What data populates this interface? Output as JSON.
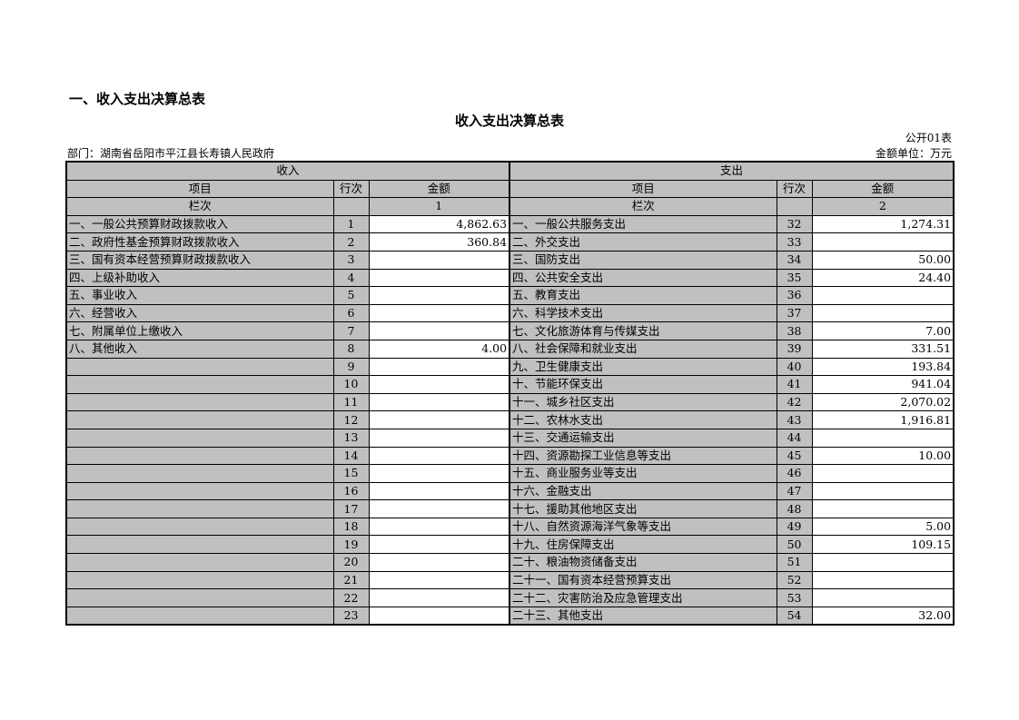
{
  "heading": "一、收入支出决算总表",
  "title": "收入支出决算总表",
  "form_code": "公开01表",
  "department": "部门：湖南省岳阳市平江县长寿镇人民政府",
  "unit": "金额单位：万元",
  "headers": {
    "income": "收入",
    "expense": "支出",
    "item": "项目",
    "row_no": "行次",
    "amount": "金额",
    "column_order": "栏次",
    "income_col": "1",
    "expense_col": "2"
  },
  "rows": [
    {
      "in_item": "一、一般公共预算财政拨款收入",
      "in_no": "1",
      "in_amt": "4,862.63",
      "ex_item": "一、一般公共服务支出",
      "ex_no": "32",
      "ex_amt": "1,274.31"
    },
    {
      "in_item": "二、政府性基金预算财政拨款收入",
      "in_no": "2",
      "in_amt": "360.84",
      "ex_item": "二、外交支出",
      "ex_no": "33",
      "ex_amt": ""
    },
    {
      "in_item": "三、国有资本经营预算财政拨款收入",
      "in_no": "3",
      "in_amt": "",
      "ex_item": "三、国防支出",
      "ex_no": "34",
      "ex_amt": "50.00"
    },
    {
      "in_item": "四、上级补助收入",
      "in_no": "4",
      "in_amt": "",
      "ex_item": "四、公共安全支出",
      "ex_no": "35",
      "ex_amt": "24.40"
    },
    {
      "in_item": "五、事业收入",
      "in_no": "5",
      "in_amt": "",
      "ex_item": "五、教育支出",
      "ex_no": "36",
      "ex_amt": ""
    },
    {
      "in_item": "六、经营收入",
      "in_no": "6",
      "in_amt": "",
      "ex_item": "六、科学技术支出",
      "ex_no": "37",
      "ex_amt": ""
    },
    {
      "in_item": "七、附属单位上缴收入",
      "in_no": "7",
      "in_amt": "",
      "ex_item": "七、文化旅游体育与传媒支出",
      "ex_no": "38",
      "ex_amt": "7.00"
    },
    {
      "in_item": "八、其他收入",
      "in_no": "8",
      "in_amt": "4.00",
      "ex_item": "八、社会保障和就业支出",
      "ex_no": "39",
      "ex_amt": "331.51"
    },
    {
      "in_item": "",
      "in_no": "9",
      "in_amt": "",
      "ex_item": "九、卫生健康支出",
      "ex_no": "40",
      "ex_amt": "193.84"
    },
    {
      "in_item": "",
      "in_no": "10",
      "in_amt": "",
      "ex_item": "十、节能环保支出",
      "ex_no": "41",
      "ex_amt": "941.04"
    },
    {
      "in_item": "",
      "in_no": "11",
      "in_amt": "",
      "ex_item": "十一、城乡社区支出",
      "ex_no": "42",
      "ex_amt": "2,070.02"
    },
    {
      "in_item": "",
      "in_no": "12",
      "in_amt": "",
      "ex_item": "十二、农林水支出",
      "ex_no": "43",
      "ex_amt": "1,916.81"
    },
    {
      "in_item": "",
      "in_no": "13",
      "in_amt": "",
      "ex_item": "十三、交通运输支出",
      "ex_no": "44",
      "ex_amt": ""
    },
    {
      "in_item": "",
      "in_no": "14",
      "in_amt": "",
      "ex_item": "十四、资源勘探工业信息等支出",
      "ex_no": "45",
      "ex_amt": "10.00"
    },
    {
      "in_item": "",
      "in_no": "15",
      "in_amt": "",
      "ex_item": "十五、商业服务业等支出",
      "ex_no": "46",
      "ex_amt": ""
    },
    {
      "in_item": "",
      "in_no": "16",
      "in_amt": "",
      "ex_item": "十六、金融支出",
      "ex_no": "47",
      "ex_amt": ""
    },
    {
      "in_item": "",
      "in_no": "17",
      "in_amt": "",
      "ex_item": "十七、援助其他地区支出",
      "ex_no": "48",
      "ex_amt": ""
    },
    {
      "in_item": "",
      "in_no": "18",
      "in_amt": "",
      "ex_item": "十八、自然资源海洋气象等支出",
      "ex_no": "49",
      "ex_amt": "5.00"
    },
    {
      "in_item": "",
      "in_no": "19",
      "in_amt": "",
      "ex_item": "十九、住房保障支出",
      "ex_no": "50",
      "ex_amt": "109.15"
    },
    {
      "in_item": "",
      "in_no": "20",
      "in_amt": "",
      "ex_item": "二十、粮油物资储备支出",
      "ex_no": "51",
      "ex_amt": ""
    },
    {
      "in_item": "",
      "in_no": "21",
      "in_amt": "",
      "ex_item": "二十一、国有资本经营预算支出",
      "ex_no": "52",
      "ex_amt": ""
    },
    {
      "in_item": "",
      "in_no": "22",
      "in_amt": "",
      "ex_item": "二十二、灾害防治及应急管理支出",
      "ex_no": "53",
      "ex_amt": ""
    },
    {
      "in_item": "",
      "in_no": "23",
      "in_amt": "",
      "ex_item": "二十三、其他支出",
      "ex_no": "54",
      "ex_amt": "32.00"
    }
  ]
}
